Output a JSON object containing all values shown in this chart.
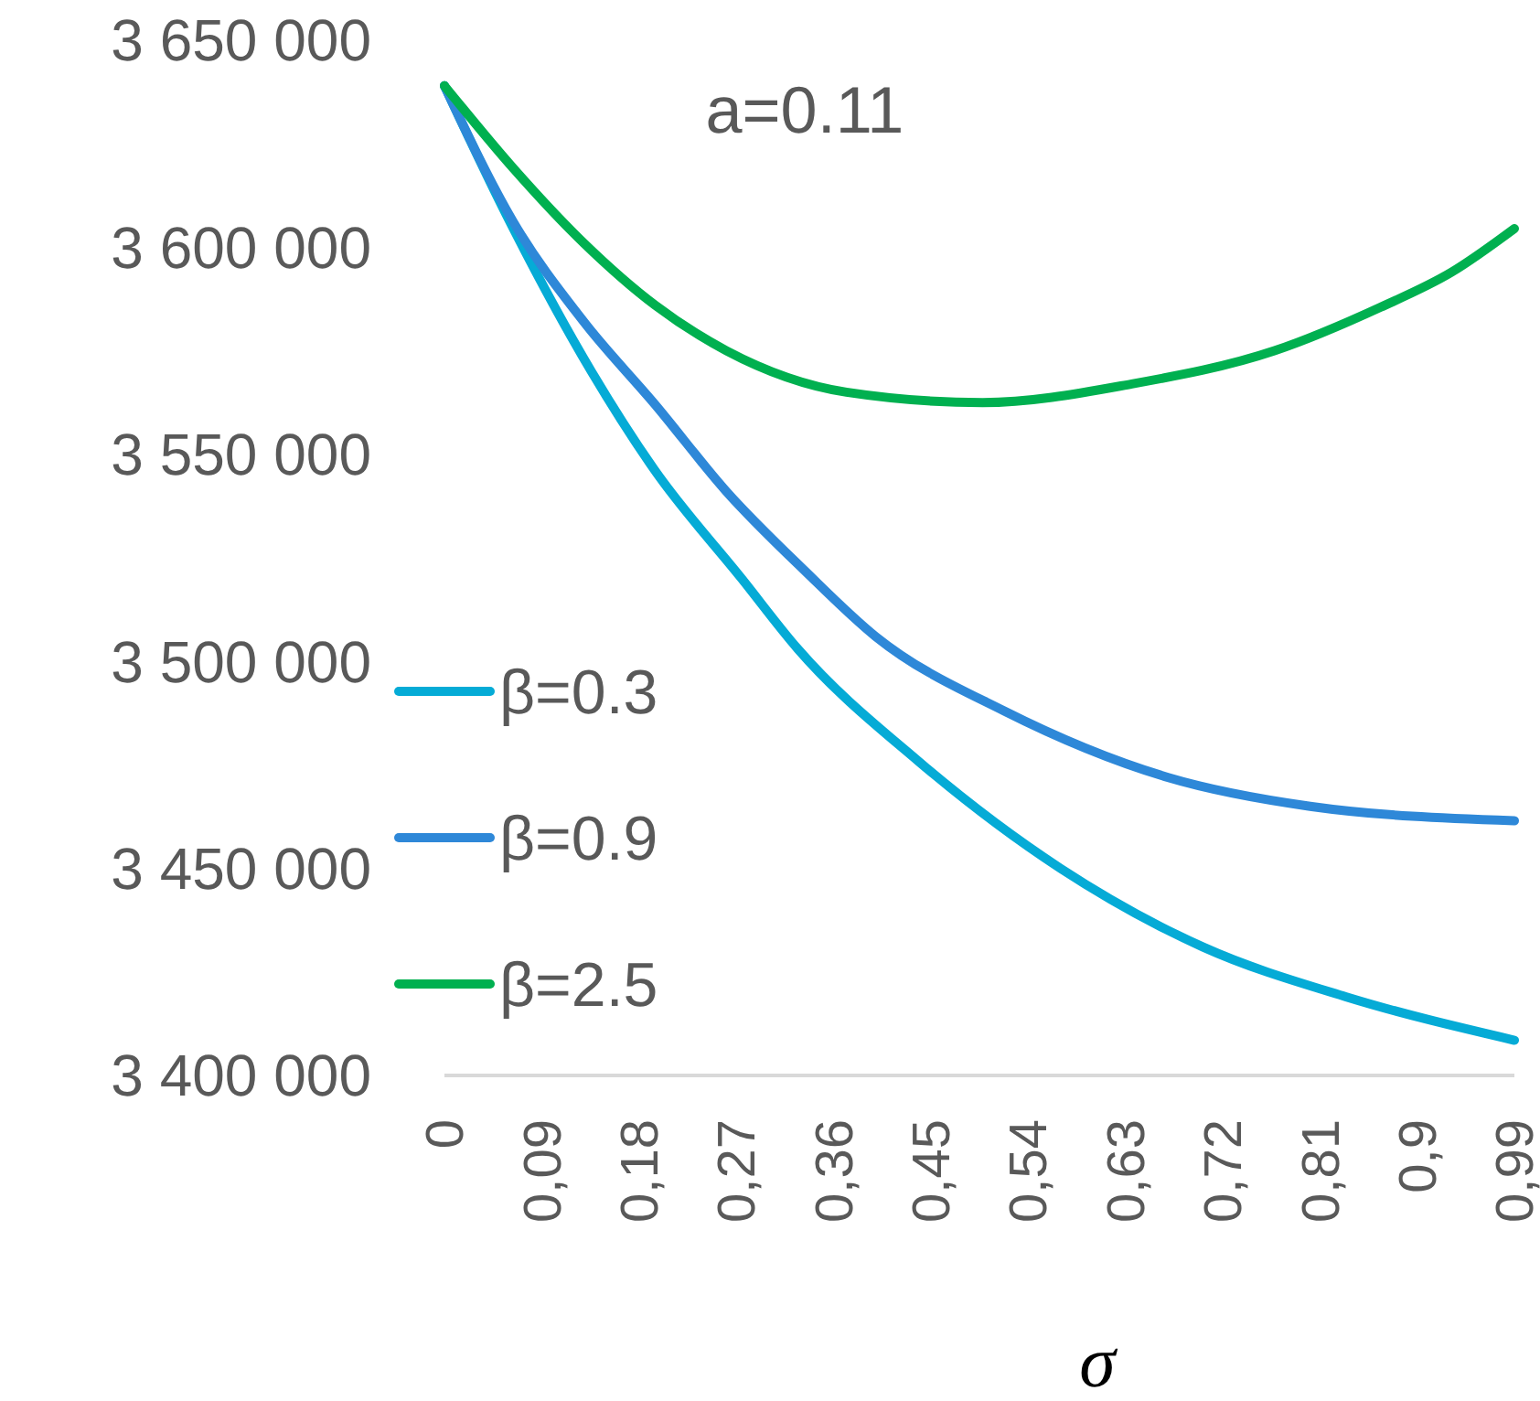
{
  "chart_data": {
    "type": "line",
    "xlabel": "σ",
    "annotations": [
      "a=0.11"
    ],
    "xlim": [
      0,
      0.99
    ],
    "xticks": [
      0,
      {
        "value": 0.09,
        "label": "0,09"
      },
      {
        "value": 0.18,
        "label": "0,18"
      },
      {
        "value": 0.27,
        "label": "0,27"
      },
      {
        "value": 0.36,
        "label": "0,36"
      },
      {
        "value": 0.45,
        "label": "0,45"
      },
      {
        "value": 0.54,
        "label": "0,54"
      },
      {
        "value": 0.63,
        "label": "0,63"
      },
      {
        "value": 0.72,
        "label": "0,72"
      },
      {
        "value": 0.81,
        "label": "0,81"
      },
      {
        "value": 0.9,
        "label": "0,9"
      },
      {
        "value": 0.99,
        "label": "0,99"
      }
    ],
    "ylim": [
      3400000,
      3650000
    ],
    "yticks": [
      {
        "value": 3400000,
        "label": "3 400 000"
      },
      {
        "value": 3450000,
        "label": "3 450 000"
      },
      {
        "value": 3500000,
        "label": "3 500 000"
      },
      {
        "value": 3550000,
        "label": "3 550 000"
      },
      {
        "value": 3600000,
        "label": "3 600 000"
      },
      {
        "value": 3650000,
        "label": "3 650 000"
      }
    ],
    "grid": false,
    "legend": "left",
    "marker": "none",
    "line_style": "solid",
    "series": [
      {
        "name": "β=0.3",
        "color": "#05abd6",
        "x": [
          0,
          0.057,
          0.136,
          0.195,
          0.275,
          0.327,
          0.438,
          0.57,
          0.702,
          0.834,
          0.99
        ],
        "values": [
          3639000,
          3608000,
          3570000,
          3546000,
          3520000,
          3503000,
          3476000,
          3450000,
          3431000,
          3419000,
          3408500
        ]
      },
      {
        "name": "β=0.9",
        "color": "#2e88d8",
        "x": [
          0,
          0.064,
          0.129,
          0.195,
          0.261,
          0.333,
          0.399,
          0.518,
          0.669,
          0.801,
          0.99
        ],
        "values": [
          3639000,
          3606000,
          3582000,
          3562000,
          3541000,
          3522000,
          3506000,
          3488000,
          3472000,
          3465000,
          3461500
        ]
      },
      {
        "name": "β=2.5",
        "color": "#00b050",
        "x": [
          0,
          0.064,
          0.129,
          0.195,
          0.261,
          0.372,
          0.498,
          0.636,
          0.768,
          0.866,
          0.932,
          0.99
        ],
        "values": [
          3639000,
          3619000,
          3601000,
          3586000,
          3575000,
          3565000,
          3562500,
          3567000,
          3575000,
          3585500,
          3594000,
          3604500
        ]
      }
    ]
  }
}
